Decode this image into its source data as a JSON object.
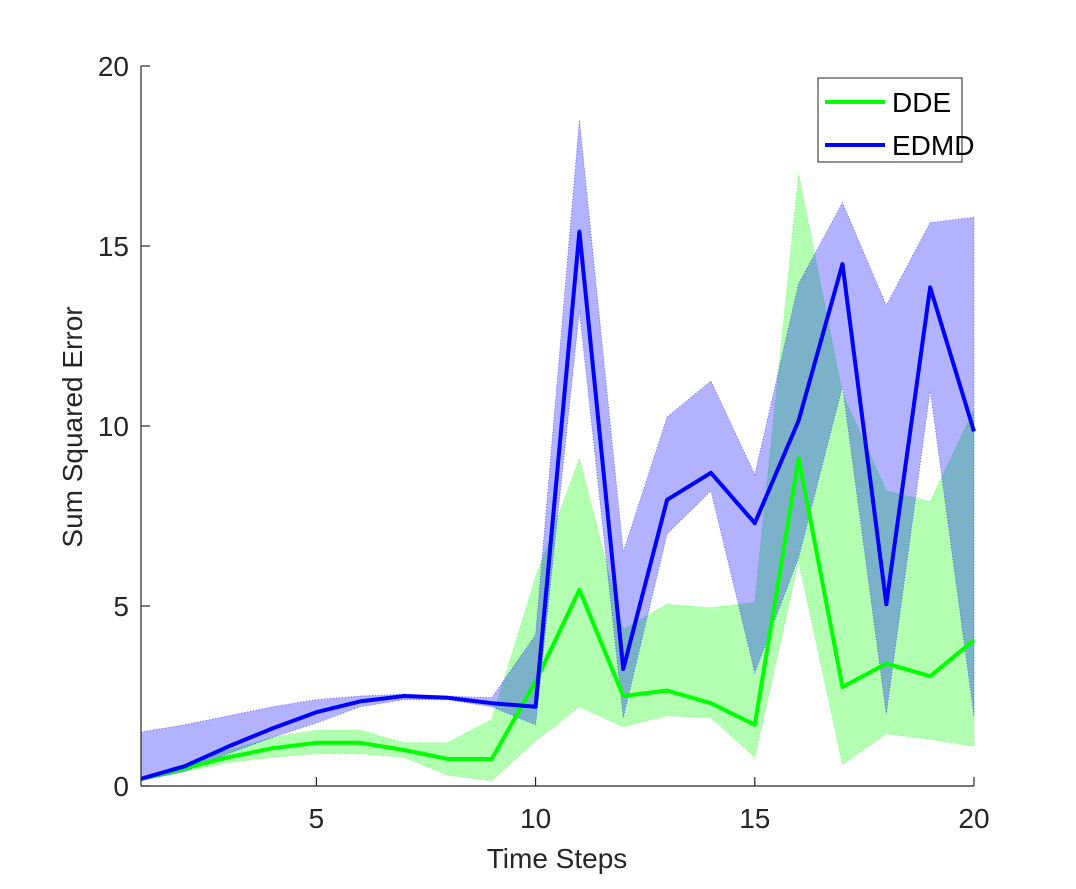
{
  "colors": {
    "dde": "#00ff00",
    "dde_band": "#00ff00",
    "edmd": "#0000ff",
    "edmd_band": "#0000ff",
    "axis": "#262626",
    "background": "#ffffff"
  },
  "chart_data": {
    "type": "line",
    "title": "",
    "xlabel": "Time Steps",
    "ylabel": "Sum Squared Error",
    "xlim": [
      1,
      20
    ],
    "ylim": [
      0,
      20
    ],
    "xticks": [
      5,
      10,
      15,
      20
    ],
    "yticks": [
      0,
      5,
      10,
      15,
      20
    ],
    "grid": false,
    "legend_position": "top-right",
    "x": [
      1,
      2,
      3,
      4,
      5,
      6,
      7,
      8,
      9,
      10,
      11,
      12,
      13,
      14,
      15,
      16,
      17,
      18,
      19,
      20
    ],
    "series": [
      {
        "name": "DDE",
        "color": "#00ff00",
        "values": [
          0.2,
          0.5,
          0.8,
          1.05,
          1.2,
          1.2,
          1.0,
          0.75,
          0.75,
          2.9,
          5.45,
          2.5,
          2.65,
          2.3,
          1.7,
          9.1,
          2.75,
          3.4,
          3.05,
          4.05
        ],
        "band_upper": [
          0.25,
          0.6,
          1.0,
          1.35,
          1.55,
          1.55,
          1.2,
          1.2,
          1.85,
          5.8,
          9.1,
          4.35,
          5.05,
          4.95,
          5.1,
          17.0,
          10.9,
          8.2,
          7.9,
          10.45
        ],
        "band_lower": [
          0.15,
          0.4,
          0.65,
          0.8,
          0.9,
          0.9,
          0.8,
          0.3,
          0.15,
          1.25,
          2.2,
          1.65,
          1.95,
          1.9,
          0.8,
          6.25,
          0.6,
          1.45,
          1.3,
          1.1
        ]
      },
      {
        "name": "EDMD",
        "color": "#0000ff",
        "values": [
          0.2,
          0.55,
          1.1,
          1.6,
          2.05,
          2.35,
          2.5,
          2.45,
          2.3,
          2.2,
          15.4,
          3.25,
          7.95,
          8.7,
          7.3,
          10.15,
          14.5,
          5.05,
          13.85,
          9.85
        ],
        "band_upper": [
          1.5,
          1.7,
          1.95,
          2.2,
          2.4,
          2.5,
          2.55,
          2.5,
          2.45,
          4.2,
          18.5,
          6.5,
          10.25,
          11.25,
          8.65,
          13.95,
          16.2,
          13.35,
          15.65,
          15.8
        ],
        "band_lower": [
          0.15,
          0.4,
          0.9,
          1.35,
          1.75,
          2.2,
          2.4,
          2.4,
          2.2,
          1.7,
          13.2,
          1.9,
          7.0,
          8.2,
          3.15,
          6.35,
          11.1,
          2.0,
          11.0,
          1.95
        ]
      }
    ]
  }
}
